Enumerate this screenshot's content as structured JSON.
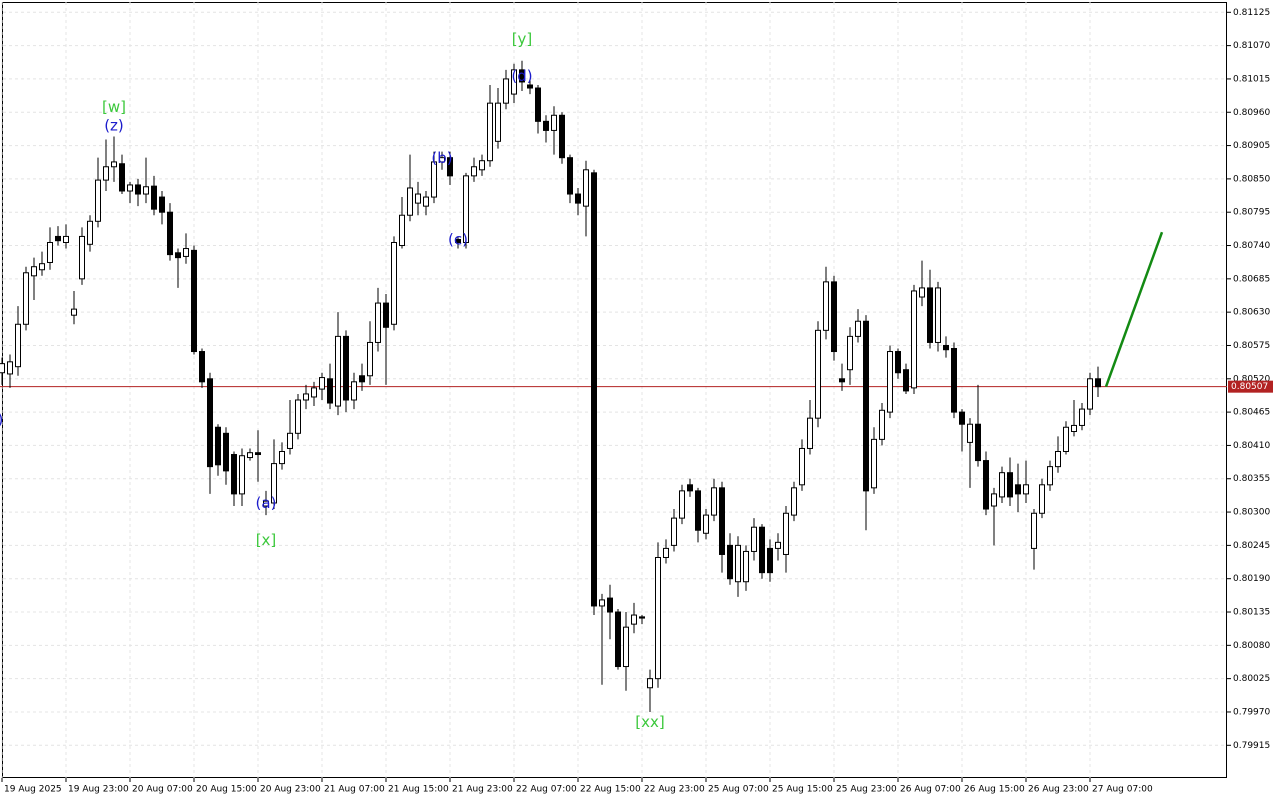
{
  "chart_data": {
    "type": "candlestick",
    "open": [
      0.8053,
      0.80528,
      0.8054,
      0.8061,
      0.8069,
      0.807,
      0.80712,
      0.80755,
      0.80745,
      0.80625,
      0.80685,
      0.80742,
      0.8078,
      0.80848,
      0.8087,
      0.80875,
      0.8083,
      0.8084,
      0.80825,
      0.80838,
      0.8082,
      0.80795,
      0.80728,
      0.80722,
      0.80732,
      0.80565,
      0.8052,
      0.8044,
      0.8043,
      0.80395,
      0.8033,
      0.8039,
      0.80398,
      0.8031,
      0.80315,
      0.8038,
      0.80405,
      0.8043,
      0.80485,
      0.8049,
      0.80503,
      0.8052,
      0.80475,
      0.8059,
      0.80485,
      0.80525,
      0.80525,
      0.8058,
      0.80645,
      0.8061,
      0.8074,
      0.8079,
      0.8081,
      0.80805,
      0.8082,
      0.80878,
      0.80885,
      0.8075,
      0.80745,
      0.80855,
      0.80865,
      0.8088,
      0.80912,
      0.80975,
      0.8099,
      0.8103,
      0.81005,
      0.81,
      0.80945,
      0.8093,
      0.80955,
      0.80885,
      0.80825,
      0.80805,
      0.8086,
      0.80145,
      0.80158,
      0.80135,
      0.80045,
      0.80115,
      0.80127,
      0.8001,
      0.80025,
      0.80225,
      0.80245,
      0.8029,
      0.80345,
      0.80335,
      0.80265,
      0.80295,
      0.8034,
      0.80245,
      0.80185,
      0.80185,
      0.80235,
      0.80275,
      0.8024,
      0.8024,
      0.8023,
      0.80295,
      0.80345,
      0.80405,
      0.80455,
      0.806,
      0.8068,
      0.8052,
      0.80535,
      0.8059,
      0.80615,
      0.8034,
      0.8042,
      0.80465,
      0.80565,
      0.80535,
      0.80505,
      0.80655,
      0.8067,
      0.8058,
      0.80575,
      0.8057,
      0.80465,
      0.80415,
      0.80445,
      0.80385,
      0.8031,
      0.80325,
      0.80365,
      0.80345,
      0.8033,
      0.8024,
      0.80298,
      0.80345,
      0.80375,
      0.804,
      0.80433,
      0.80443,
      0.8047,
      0.8052
    ],
    "high": [
      0.80555,
      0.8056,
      0.8064,
      0.80705,
      0.8072,
      0.8073,
      0.8077,
      0.80772,
      0.80775,
      0.80665,
      0.8077,
      0.8079,
      0.80885,
      0.80915,
      0.8092,
      0.8089,
      0.80845,
      0.8085,
      0.80885,
      0.80855,
      0.8083,
      0.8081,
      0.80735,
      0.8076,
      0.8074,
      0.8057,
      0.8053,
      0.80445,
      0.8044,
      0.804,
      0.80405,
      0.80405,
      0.80435,
      0.80335,
      0.8042,
      0.80415,
      0.80485,
      0.80495,
      0.8051,
      0.80515,
      0.8053,
      0.80545,
      0.8063,
      0.806,
      0.8053,
      0.80545,
      0.80615,
      0.8067,
      0.8066,
      0.80755,
      0.8082,
      0.8089,
      0.80845,
      0.8083,
      0.80895,
      0.80895,
      0.80895,
      0.80755,
      0.8086,
      0.80885,
      0.8089,
      0.81005,
      0.81,
      0.8103,
      0.8104,
      0.81045,
      0.81015,
      0.81005,
      0.80955,
      0.8097,
      0.8096,
      0.8089,
      0.80835,
      0.8088,
      0.80865,
      0.80165,
      0.8018,
      0.8014,
      0.80135,
      0.8015,
      0.8013,
      0.8004,
      0.8025,
      0.80255,
      0.80305,
      0.80345,
      0.80355,
      0.8034,
      0.80305,
      0.80355,
      0.8035,
      0.80265,
      0.8026,
      0.80245,
      0.8029,
      0.8028,
      0.80255,
      0.80265,
      0.8031,
      0.8035,
      0.8042,
      0.80485,
      0.80615,
      0.80705,
      0.8069,
      0.80545,
      0.80605,
      0.80635,
      0.80625,
      0.8044,
      0.8048,
      0.80575,
      0.8057,
      0.80545,
      0.80675,
      0.80715,
      0.807,
      0.8068,
      0.8059,
      0.8058,
      0.8047,
      0.80455,
      0.8051,
      0.804,
      0.8034,
      0.80375,
      0.8039,
      0.8038,
      0.80385,
      0.80305,
      0.80355,
      0.80385,
      0.80425,
      0.8045,
      0.80485,
      0.8048,
      0.8053,
      0.8054
    ],
    "low": [
      0.8051,
      0.80505,
      0.80525,
      0.806,
      0.8065,
      0.8069,
      0.807,
      0.8074,
      0.80735,
      0.8061,
      0.80675,
      0.8073,
      0.8077,
      0.8083,
      0.80845,
      0.80825,
      0.8081,
      0.80805,
      0.8081,
      0.8079,
      0.80775,
      0.80715,
      0.8067,
      0.8071,
      0.8056,
      0.80505,
      0.8033,
      0.8036,
      0.80345,
      0.8031,
      0.8031,
      0.80385,
      0.8035,
      0.80295,
      0.80305,
      0.8037,
      0.80395,
      0.8042,
      0.8047,
      0.80475,
      0.80485,
      0.8047,
      0.8046,
      0.80465,
      0.8047,
      0.805,
      0.8051,
      0.80565,
      0.8051,
      0.806,
      0.80735,
      0.8078,
      0.8079,
      0.8079,
      0.8081,
      0.80865,
      0.8084,
      0.80735,
      0.80735,
      0.80845,
      0.80855,
      0.8087,
      0.809,
      0.80965,
      0.80975,
      0.80995,
      0.8099,
      0.80925,
      0.8091,
      0.8089,
      0.80875,
      0.8081,
      0.8079,
      0.80755,
      0.8013,
      0.80015,
      0.8009,
      0.8004,
      0.80005,
      0.801,
      0.80115,
      0.7997,
      0.8001,
      0.80215,
      0.80235,
      0.8028,
      0.80325,
      0.8025,
      0.80255,
      0.80285,
      0.802,
      0.8018,
      0.8016,
      0.8017,
      0.8022,
      0.8019,
      0.80185,
      0.8022,
      0.802,
      0.80285,
      0.80335,
      0.80395,
      0.8044,
      0.80585,
      0.8055,
      0.805,
      0.8051,
      0.8058,
      0.8027,
      0.8033,
      0.8041,
      0.80455,
      0.8052,
      0.80495,
      0.80495,
      0.8064,
      0.8057,
      0.80565,
      0.80555,
      0.80455,
      0.804,
      0.8034,
      0.80375,
      0.80295,
      0.80245,
      0.80315,
      0.8031,
      0.803,
      0.80315,
      0.80205,
      0.8029,
      0.80335,
      0.80365,
      0.80395,
      0.80425,
      0.80435,
      0.8046,
      0.8049
    ],
    "close": [
      0.80545,
      0.80548,
      0.8061,
      0.80695,
      0.80705,
      0.8071,
      0.80745,
      0.80748,
      0.80755,
      0.80635,
      0.80755,
      0.8078,
      0.80848,
      0.8087,
      0.80878,
      0.8083,
      0.8084,
      0.80825,
      0.80837,
      0.808,
      0.80795,
      0.80725,
      0.8072,
      0.80735,
      0.80565,
      0.80515,
      0.80375,
      0.80378,
      0.80368,
      0.8033,
      0.80393,
      0.80398,
      0.80395,
      0.80318,
      0.8038,
      0.804,
      0.8043,
      0.80485,
      0.80495,
      0.80505,
      0.80522,
      0.8048,
      0.8059,
      0.80485,
      0.80515,
      0.80515,
      0.8058,
      0.80645,
      0.80605,
      0.80745,
      0.8079,
      0.80835,
      0.80825,
      0.8082,
      0.80878,
      0.80885,
      0.80855,
      0.80745,
      0.80855,
      0.8087,
      0.8088,
      0.80975,
      0.80975,
      0.81015,
      0.8103,
      0.8101,
      0.81,
      0.80945,
      0.8093,
      0.80955,
      0.80885,
      0.80825,
      0.8081,
      0.80865,
      0.80145,
      0.80155,
      0.80135,
      0.80045,
      0.8011,
      0.8013,
      0.80125,
      0.80025,
      0.80225,
      0.8024,
      0.8029,
      0.80335,
      0.80335,
      0.8027,
      0.80295,
      0.8034,
      0.8023,
      0.8019,
      0.80245,
      0.80235,
      0.80275,
      0.802,
      0.802,
      0.8025,
      0.80298,
      0.8034,
      0.80405,
      0.80455,
      0.806,
      0.8068,
      0.80565,
      0.80515,
      0.8059,
      0.80615,
      0.80335,
      0.8042,
      0.80468,
      0.80565,
      0.8053,
      0.805,
      0.80665,
      0.8067,
      0.8058,
      0.8067,
      0.80568,
      0.80465,
      0.80445,
      0.80445,
      0.80385,
      0.80305,
      0.8033,
      0.80365,
      0.80325,
      0.8033,
      0.80345,
      0.80298,
      0.80345,
      0.80375,
      0.804,
      0.8044,
      0.80443,
      0.8047,
      0.8052,
      0.80507
    ],
    "up_color": "#ffffff",
    "down_color": "#000000",
    "outline_color": "#000000",
    "xlim": [
      -0.25,
      153.125
    ],
    "xticks": [
      {
        "value": 0,
        "label": "19 Aug 2025"
      },
      {
        "value": 8,
        "label": "19 Aug 23:00"
      },
      {
        "value": 16,
        "label": "20 Aug 07:00"
      },
      {
        "value": 24,
        "label": "20 Aug 15:00"
      },
      {
        "value": 32,
        "label": "20 Aug 23:00"
      },
      {
        "value": 40,
        "label": "21 Aug 07:00"
      },
      {
        "value": 48,
        "label": "21 Aug 15:00"
      },
      {
        "value": 56,
        "label": "21 Aug 23:00"
      },
      {
        "value": 64,
        "label": "22 Aug 07:00"
      },
      {
        "value": 72,
        "label": "22 Aug 15:00"
      },
      {
        "value": 80,
        "label": "22 Aug 23:00"
      },
      {
        "value": 88,
        "label": "25 Aug 07:00"
      },
      {
        "value": 96,
        "label": "25 Aug 15:00"
      },
      {
        "value": 104,
        "label": "25 Aug 23:00"
      },
      {
        "value": 112,
        "label": "26 Aug 07:00"
      },
      {
        "value": 120,
        "label": "26 Aug 15:00"
      },
      {
        "value": 128,
        "label": "26 Aug 23:00"
      },
      {
        "value": 136,
        "label": "27 Aug 07:00"
      }
    ],
    "ylim": [
      0.79861,
      0.81142
    ],
    "yticks": [
      0.81125,
      {
        "value": 0.8107,
        "label": "0.81070"
      },
      0.81015,
      {
        "value": 0.8096,
        "label": "0.80960"
      },
      0.80905,
      {
        "value": 0.8085,
        "label": "0.80850"
      },
      0.80795,
      {
        "value": 0.8074,
        "label": "0.80740"
      },
      0.80685,
      {
        "value": 0.8063,
        "label": "0.80630"
      },
      0.80575,
      {
        "value": 0.8052,
        "label": "0.80520"
      },
      0.80465,
      {
        "value": 0.8041,
        "label": "0.80410"
      },
      0.80355,
      {
        "value": 0.803,
        "label": "0.80300"
      },
      0.80245,
      {
        "value": 0.8019,
        "label": "0.80190"
      },
      0.80135,
      {
        "value": 0.8008,
        "label": "0.80080"
      },
      0.80025,
      {
        "value": 0.7997,
        "label": "0.79970"
      },
      0.79915
    ],
    "grid": true,
    "price_line": {
      "value": 0.80507,
      "color": "#b22222"
    },
    "projection": {
      "x": [
        138,
        145
      ],
      "y": [
        0.80507,
        0.80762
      ],
      "color": "#138a13"
    },
    "annotations": [
      {
        "text": ")",
        "x": -0.2,
        "y": 0.80452,
        "color": "#1c1ccc"
      },
      {
        "text": "[w]",
        "x": 14,
        "y": 0.80968,
        "color": "#3cc83c"
      },
      {
        "text": "(z)",
        "x": 14,
        "y": 0.80937,
        "color": "#1c1ccc"
      },
      {
        "text": "(a)",
        "x": 33,
        "y": 0.80314,
        "color": "#1c1ccc"
      },
      {
        "text": "[x]",
        "x": 33,
        "y": 0.80253,
        "color": "#3cc83c"
      },
      {
        "text": "(b)",
        "x": 55,
        "y": 0.80884,
        "color": "#1c1ccc"
      },
      {
        "text": "(c)",
        "x": 57,
        "y": 0.80749,
        "color": "#1c1ccc"
      },
      {
        "text": "[y]",
        "x": 65,
        "y": 0.8108,
        "color": "#3cc83c"
      },
      {
        "text": "(d)",
        "x": 65,
        "y": 0.81019,
        "color": "#1c1ccc"
      },
      {
        "text": "[xx]",
        "x": 81,
        "y": 0.79953,
        "color": "#3cc83c"
      }
    ]
  }
}
